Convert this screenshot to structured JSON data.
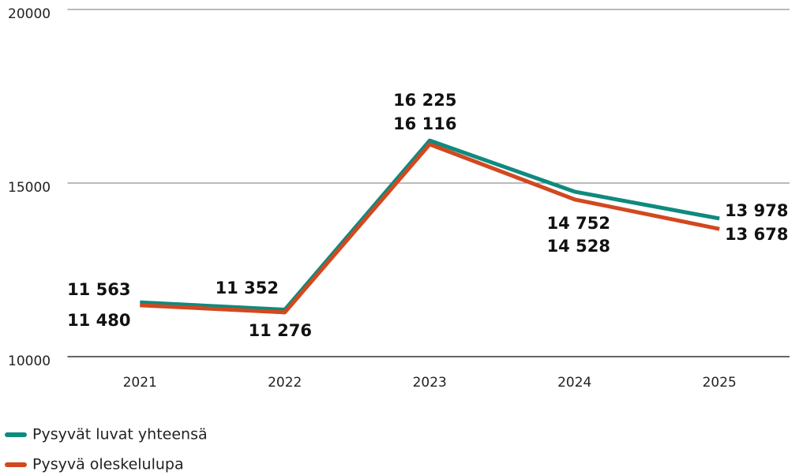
{
  "chart_data": {
    "type": "line",
    "categories": [
      "2021",
      "2022",
      "2023",
      "2024",
      "2025"
    ],
    "series": [
      {
        "name": "Pysyvät luvat yhteensä",
        "color": "#0f8a7e",
        "values": [
          11563,
          11352,
          16225,
          14752,
          13978
        ],
        "value_labels": [
          "11 563",
          "11 352",
          "16 225",
          "14 752",
          "13 978"
        ]
      },
      {
        "name": "Pysyvä oleskelulupa",
        "color": "#d2481f",
        "values": [
          11480,
          11276,
          16116,
          14528,
          13678
        ],
        "value_labels": [
          "11 480",
          "11 276",
          "16 116",
          "14 528",
          "13 678"
        ]
      }
    ],
    "ylim": [
      10000,
      20000
    ],
    "yticks": [
      10000,
      15000,
      20000
    ],
    "grid": true,
    "legend": "bottom-left"
  }
}
